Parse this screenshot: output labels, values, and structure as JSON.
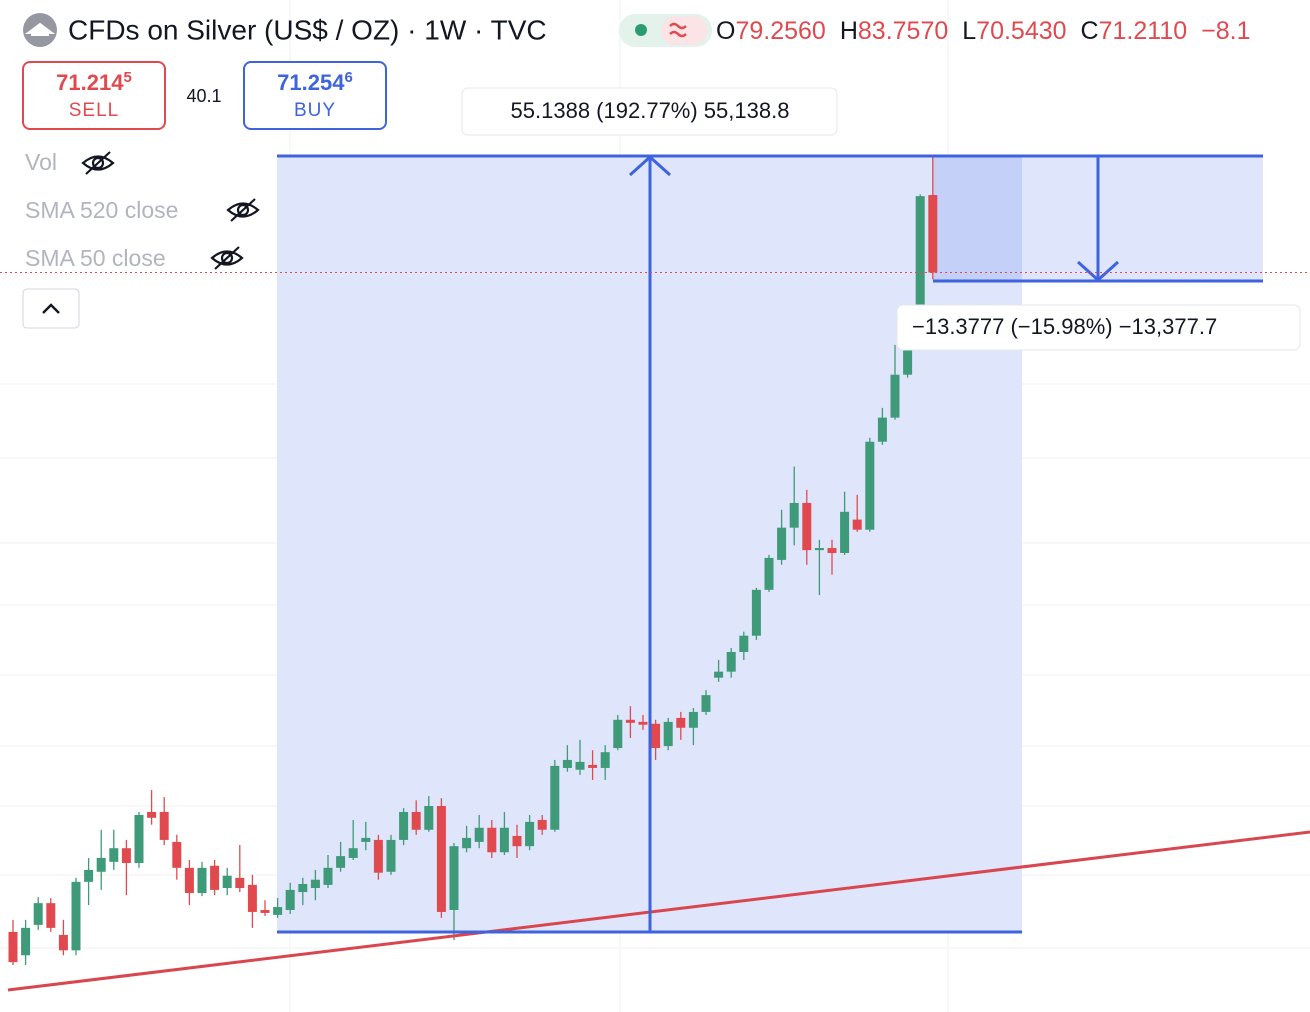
{
  "header": {
    "title": "CFDs on Silver (US$ / OZ) · 1W · TVC",
    "ohlc": [
      {
        "label": "O",
        "value": "79.2560"
      },
      {
        "label": "H",
        "value": "83.7570"
      },
      {
        "label": "L",
        "value": "70.5430"
      },
      {
        "label": "C",
        "value": "71.2110"
      }
    ],
    "change": "−8.1"
  },
  "trade": {
    "sell": {
      "price": "71.214",
      "price_last": "5",
      "label": "SELL"
    },
    "spread": "40.1",
    "buy": {
      "price": "71.254",
      "price_last": "6",
      "label": "BUY"
    }
  },
  "indicators": [
    "Vol",
    "SMA 520 close",
    "SMA 50 close"
  ],
  "measurements": [
    {
      "label": "55.1388 (192.77%) 55,138.8"
    },
    {
      "label": "−13.3777 (−15.98%) −13,377.7"
    }
  ],
  "chart_data": {
    "type": "candlestick",
    "log_scale": true,
    "ylim": [
      25.63,
      103.77
    ],
    "up_color": "#3e9a78",
    "down_color": "#e04a4f",
    "open": [
      28.63,
      27.72,
      28.91,
      29.79,
      28.51,
      27.91,
      30.68,
      31.11,
      31.54,
      32.14,
      31.49,
      33.79,
      33.79,
      32.42,
      31.28,
      30.21,
      31.37,
      30.42,
      30.85,
      30.55,
      29.51,
      29.31,
      29.51,
      30.25,
      30.42,
      30.55,
      31.28,
      31.71,
      32.42,
      32.51,
      31.11,
      32.51,
      33.79,
      32.97,
      34.07,
      29.51,
      32.14,
      32.42,
      33.06,
      31.96,
      32.69,
      32.23,
      33.42,
      32.97,
      35.91,
      35.82,
      36.06,
      35.91,
      36.91,
      38.38,
      38.27,
      38.17,
      37.01,
      38.48,
      37.96,
      38.8,
      40.68,
      41.02,
      42.15,
      43.11,
      45.93,
      47.87,
      50.05,
      51.79,
      48.52,
      48.66,
      48.33,
      50.61,
      49.91,
      56.36,
      58.27,
      61.83,
      67.08,
      79.256
    ],
    "high": [
      29.11,
      29.11,
      30.04,
      30.0,
      29.11,
      30.85,
      31.71,
      32.97,
      32.97,
      32.51,
      33.79,
      34.83,
      34.49,
      32.74,
      31.62,
      31.54,
      31.62,
      31.28,
      32.28,
      30.98,
      29.91,
      30.0,
      30.64,
      30.85,
      31.19,
      31.84,
      32.42,
      33.42,
      33.33,
      32.74,
      32.74,
      33.97,
      34.34,
      34.54,
      34.44,
      32.37,
      33.15,
      33.65,
      33.42,
      33.79,
      33.2,
      33.65,
      33.65,
      36.31,
      37.06,
      37.33,
      36.8,
      37.06,
      38.64,
      39.11,
      38.64,
      38.38,
      38.48,
      38.8,
      39.01,
      39.99,
      41.69,
      42.38,
      43.35,
      46.06,
      48.2,
      51.3,
      54.46,
      52.74,
      49.22,
      49.22,
      52.6,
      52.37,
      56.67,
      59.06,
      64.43,
      67.45,
      79.33,
      83.757
    ],
    "low": [
      27.35,
      27.35,
      28.71,
      28.63,
      27.72,
      27.72,
      29.71,
      30.34,
      31.19,
      30.12,
      31.28,
      33.2,
      32.28,
      30.77,
      29.71,
      30.08,
      30.12,
      30.12,
      30.25,
      28.79,
      29.27,
      29.19,
      29.35,
      29.71,
      29.91,
      30.42,
      31.11,
      31.62,
      32.05,
      30.77,
      30.98,
      32.28,
      32.74,
      32.88,
      29.19,
      28.31,
      31.96,
      32.14,
      31.71,
      31.84,
      31.71,
      32.05,
      32.74,
      32.88,
      35.72,
      35.57,
      35.32,
      35.32,
      36.8,
      37.43,
      37.85,
      36.31,
      36.8,
      37.33,
      37.06,
      38.64,
      40.45,
      40.68,
      41.69,
      42.86,
      45.8,
      47.55,
      48.84,
      47.55,
      45.6,
      46.9,
      48.2,
      49.77,
      49.77,
      56.12,
      58.11,
      61.58,
      66.9,
      70.543
    ],
    "close": [
      27.46,
      28.79,
      29.79,
      28.79,
      27.91,
      30.68,
      31.19,
      31.71,
      32.14,
      31.49,
      33.65,
      33.52,
      32.51,
      31.28,
      30.21,
      31.28,
      30.34,
      30.94,
      30.42,
      29.43,
      29.39,
      29.63,
      30.34,
      30.59,
      30.77,
      31.28,
      31.79,
      32.14,
      32.6,
      31.07,
      32.51,
      33.79,
      32.97,
      34.07,
      29.43,
      32.23,
      32.6,
      33.06,
      31.96,
      33.06,
      32.23,
      33.33,
      32.97,
      36.01,
      36.31,
      36.21,
      35.91,
      36.7,
      38.38,
      38.22,
      38.12,
      36.91,
      38.27,
      37.96,
      38.8,
      39.71,
      41.02,
      42.15,
      43.11,
      45.93,
      48.0,
      50.05,
      51.79,
      48.52,
      48.66,
      48.33,
      51.16,
      49.91,
      56.36,
      58.27,
      61.83,
      67.08,
      79.13,
      71.211
    ]
  }
}
